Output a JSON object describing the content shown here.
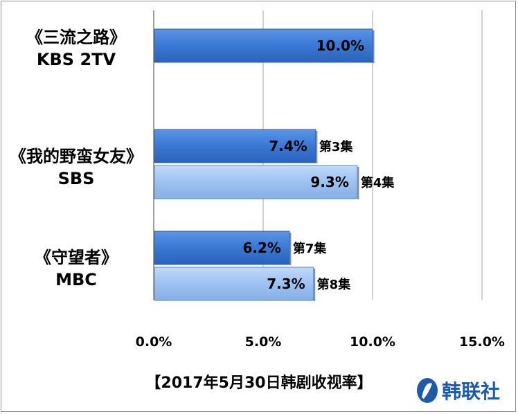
{
  "chart_data": {
    "type": "bar",
    "orientation": "horizontal",
    "categories": [
      {
        "line1": "《三流之路》",
        "line2": "KBS 2TV"
      },
      {
        "line1": "《我的野蛮女友》",
        "line2": "SBS"
      },
      {
        "line1": "《守望者》",
        "line2": "MBC"
      }
    ],
    "bars": [
      {
        "category": 0,
        "value": 10.0,
        "value_label": "10.0%",
        "episode": "",
        "shade": "dark"
      },
      {
        "category": 1,
        "value": 7.4,
        "value_label": "7.4%",
        "episode": "第3集",
        "shade": "dark"
      },
      {
        "category": 1,
        "value": 9.3,
        "value_label": "9.3%",
        "episode": "第4集",
        "shade": "light"
      },
      {
        "category": 2,
        "value": 6.2,
        "value_label": "6.2%",
        "episode": "第7集",
        "shade": "dark"
      },
      {
        "category": 2,
        "value": 7.3,
        "value_label": "7.3%",
        "episode": "第8集",
        "shade": "light"
      }
    ],
    "xlim": [
      0,
      15
    ],
    "x_ticks": [
      {
        "value": 0,
        "label": "0.0%"
      },
      {
        "value": 5,
        "label": "5.0%"
      },
      {
        "value": 10,
        "label": "10.0%"
      },
      {
        "value": 15,
        "label": "15.0%"
      }
    ],
    "grid": true,
    "colors": {
      "dark": "#3a78d4",
      "light": "#9ec2f2",
      "grid": "#a6a6a6"
    }
  },
  "caption": "【2017年5月30日韩剧收视率】",
  "logo_text": "韩联社"
}
